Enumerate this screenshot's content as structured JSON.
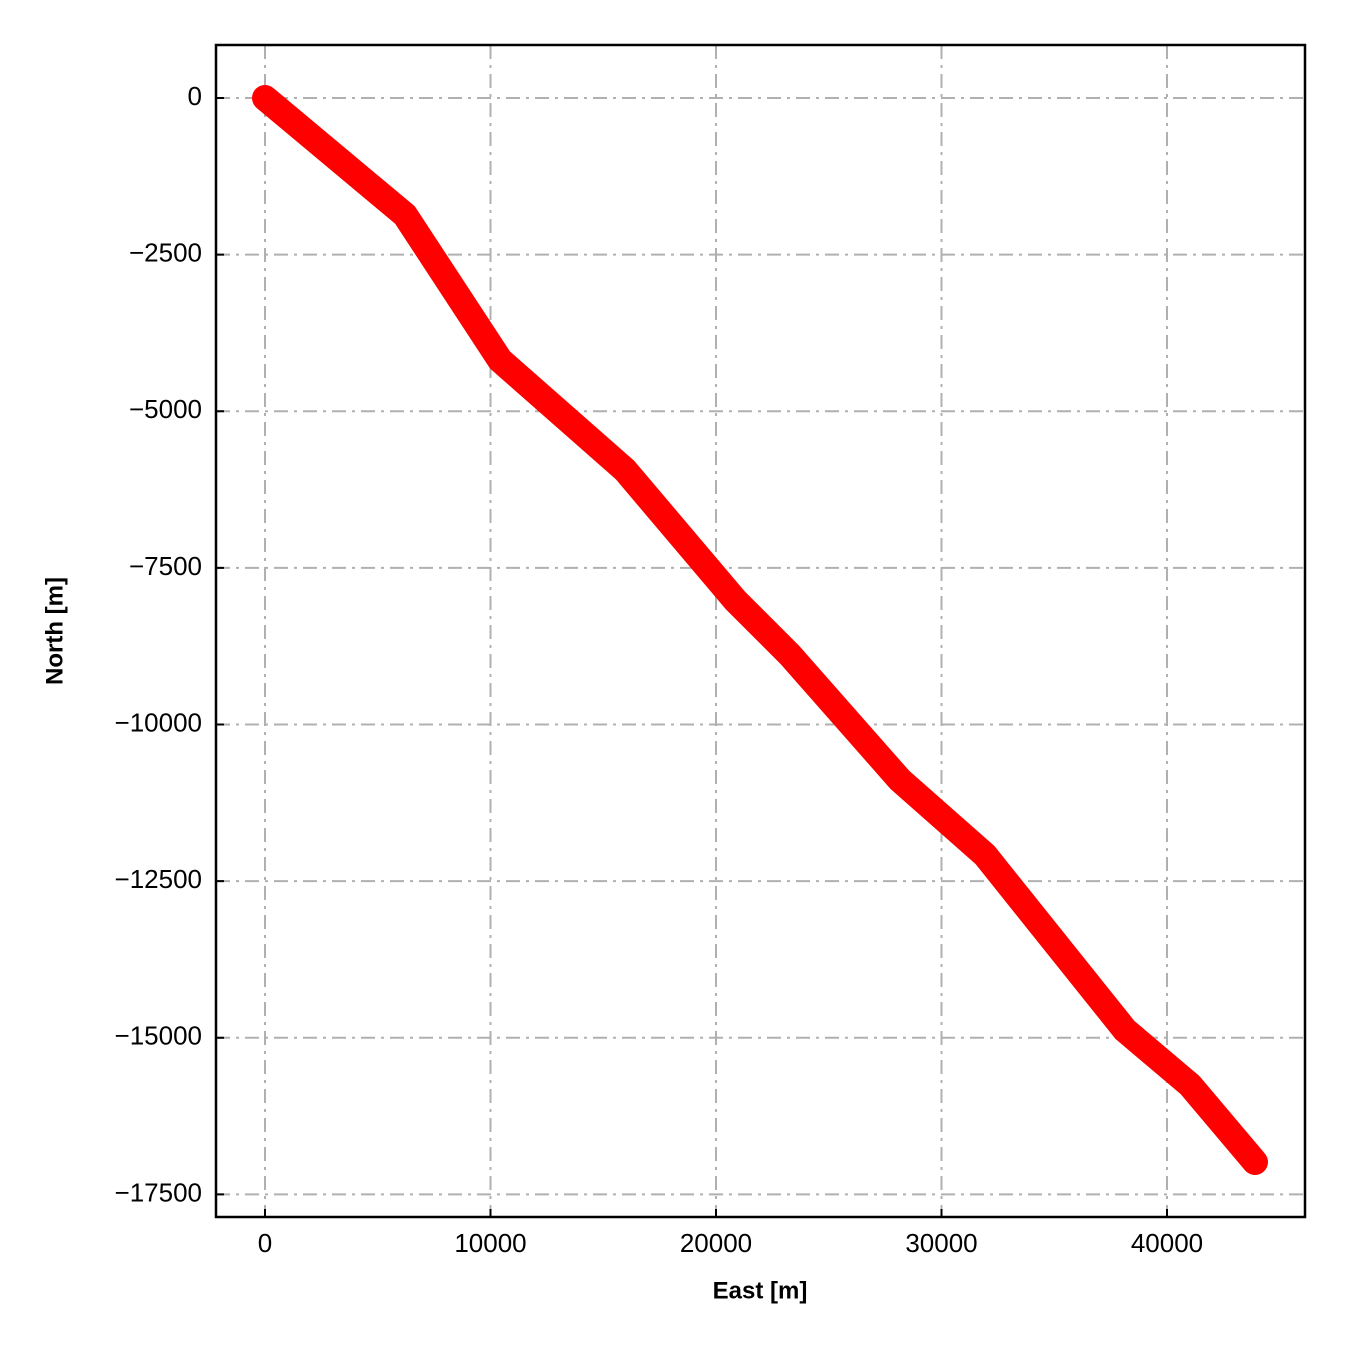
{
  "chart_data": {
    "type": "line",
    "x_label": "East [m]",
    "y_label": "North [m]",
    "series": [
      {
        "color": "#ff0000",
        "x": [
          0,
          6208,
          10421,
          15965,
          20843,
          23282,
          28160,
          31929,
          38137,
          41020,
          43902
        ],
        "values": [
          0,
          -1867,
          -4182,
          -5938,
          -8013,
          -8891,
          -10886,
          -12083,
          -14876,
          -15754,
          -16983
        ]
      }
    ],
    "xlim": [
      -2173,
      46120
    ],
    "ylim": [
      -17861,
      846
    ],
    "xticks": [
      0,
      10000,
      20000,
      30000,
      40000
    ],
    "yticks": [
      0,
      {
        "value": -2500,
        "label": "−2500"
      },
      {
        "value": -5000,
        "label": "−5000"
      },
      {
        "value": -7500,
        "label": "−7500"
      },
      {
        "value": -10000,
        "label": "−10000"
      },
      {
        "value": -12500,
        "label": "−12500"
      },
      {
        "value": -15000,
        "label": "−15000"
      },
      {
        "value": -17500,
        "label": "−17500"
      }
    ],
    "grid": true
  }
}
